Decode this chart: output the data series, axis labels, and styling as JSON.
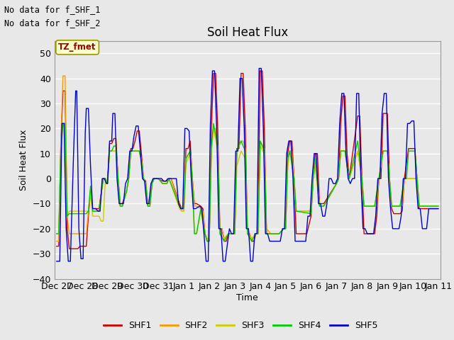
{
  "title": "Soil Heat Flux",
  "ylabel": "Soil Heat Flux",
  "xlabel": "Time",
  "ylim": [
    -40,
    55
  ],
  "background_color": "#e8e8e8",
  "plot_bg_color": "#e8e8e8",
  "no_data_text": [
    "No data for f_SHF_1",
    "No data for f_SHF_2"
  ],
  "tz_label": "TZ_fmet",
  "xtick_labels": [
    "Dec 27",
    "Dec 28",
    "Dec 29",
    "Dec 30",
    "Dec 31",
    "Jan 1",
    "Jan 2",
    "Jan 3",
    "Jan 4",
    "Jan 5",
    "Jan 6",
    "Jan 7",
    "Jan 8",
    "Jan 9",
    "Jan 10",
    "Jan 11"
  ],
  "xtick_positions": [
    0,
    24,
    48,
    72,
    96,
    120,
    144,
    168,
    192,
    216,
    240,
    264,
    288,
    312,
    336,
    360
  ],
  "legend_entries": [
    "SHF1",
    "SHF2",
    "SHF3",
    "SHF4",
    "SHF5"
  ],
  "line_colors": {
    "SHF1": "#cc0000",
    "SHF2": "#ff9900",
    "SHF3": "#cccc00",
    "SHF4": "#00cc00",
    "SHF5": "#0000cc"
  },
  "ytick_positions": [
    -40,
    -30,
    -20,
    -10,
    0,
    10,
    20,
    30,
    40,
    50
  ],
  "grid_color": "#ffffff",
  "num_points": 361
}
